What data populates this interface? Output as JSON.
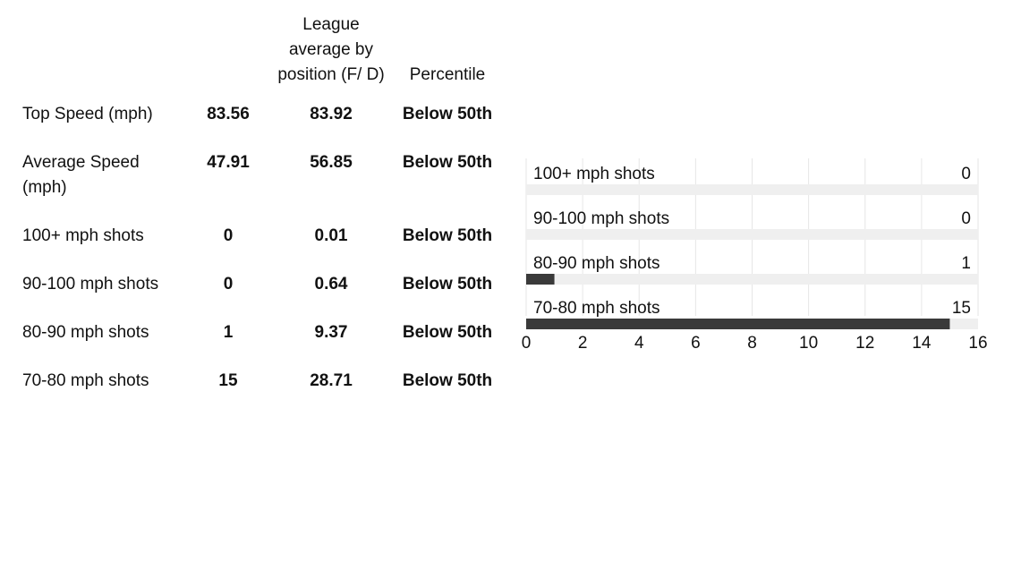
{
  "table": {
    "headers": {
      "metric": "",
      "value": "",
      "league_avg": "League average by position (F/ D)",
      "percentile": "Percentile"
    },
    "rows": [
      {
        "metric": "Top Speed (mph)",
        "value": "83.56",
        "league_avg": "83.92",
        "percentile": "Below 50th"
      },
      {
        "metric": "Average Speed (mph)",
        "value": "47.91",
        "league_avg": "56.85",
        "percentile": "Below 50th"
      },
      {
        "metric": "100+ mph shots",
        "value": "0",
        "league_avg": "0.01",
        "percentile": "Below 50th"
      },
      {
        "metric": "90-100 mph shots",
        "value": "0",
        "league_avg": "0.64",
        "percentile": "Below 50th"
      },
      {
        "metric": "80-90 mph shots",
        "value": "1",
        "league_avg": "9.37",
        "percentile": "Below 50th"
      },
      {
        "metric": "70-80 mph shots",
        "value": "15",
        "league_avg": "28.71",
        "percentile": "Below 50th"
      }
    ]
  },
  "chart_data": {
    "type": "bar",
    "orientation": "horizontal",
    "categories": [
      "100+ mph shots",
      "90-100 mph shots",
      "80-90 mph shots",
      "70-80 mph shots"
    ],
    "values": [
      0,
      0,
      1,
      15
    ],
    "xlim": [
      0,
      16
    ],
    "xticks": [
      0,
      2,
      4,
      6,
      8,
      10,
      12,
      14,
      16
    ],
    "grid": true,
    "bar_color": "#3a3a3a",
    "track_color": "#efefef"
  }
}
